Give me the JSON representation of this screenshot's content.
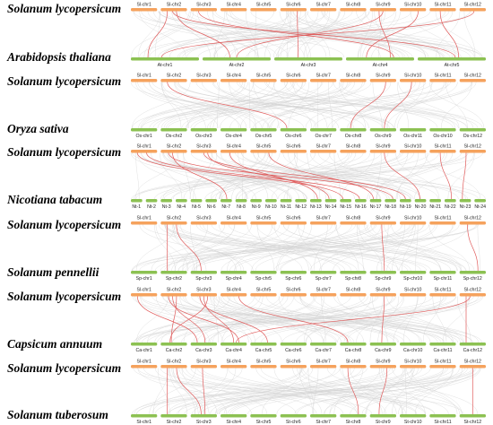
{
  "colors": {
    "top_chromosome": "#f5a25d",
    "bottom_chromosome": "#8cc152",
    "background_links": "#cfcfcf",
    "highlight_links": "#e05a5a"
  },
  "panels": [
    {
      "top_species": "Solanum lycopersicum",
      "bottom_species": "Arabidopsis thaliana",
      "top_chromosomes": [
        "Sl-chr1",
        "Sl-chr2",
        "Sl-chr3",
        "Sl-chr4",
        "Sl-chr5",
        "Sl-chr6",
        "Sl-chr7",
        "Sl-chr8",
        "Sl-chr9",
        "Sl-chr10",
        "Sl-chr11",
        "Sl-chr12"
      ],
      "bottom_chromosomes": [
        "At-chr1",
        "At-chr2",
        "At-chr3",
        "At-chr4",
        "At-chr5"
      ],
      "highlight_links": [
        [
          1,
          0
        ],
        [
          1,
          1
        ],
        [
          1,
          4
        ],
        [
          2,
          3
        ],
        [
          5,
          2
        ],
        [
          8,
          1
        ],
        [
          8,
          3
        ],
        [
          9,
          3
        ],
        [
          11,
          0
        ],
        [
          10,
          4
        ]
      ]
    },
    {
      "top_species": "Solanum lycopersicum",
      "bottom_species": "Oryza sativa",
      "top_chromosomes": [
        "Sl-chr1",
        "Sl-chr2",
        "Sl-chr3",
        "Sl-chr4",
        "Sl-chr5",
        "Sl-chr6",
        "Sl-chr7",
        "Sl-chr8",
        "Sl-chr9",
        "Sl-chr10",
        "Sl-chr11",
        "Sl-chr12"
      ],
      "bottom_chromosomes": [
        "Os-chr1",
        "Os-chr2",
        "Os-chr3",
        "Os-chr4",
        "Os-chr5",
        "Os-chr6",
        "Os-chr7",
        "Os-chr8",
        "Os-chr9",
        "Os-chr11",
        "Os-chr10",
        "Os-chr12"
      ],
      "highlight_links": [
        [
          1,
          5
        ],
        [
          8,
          7
        ],
        [
          9,
          8
        ]
      ]
    },
    {
      "top_species": "Solanum lycopersicum",
      "bottom_species": "Nicotiana tabacum",
      "top_chromosomes": [
        "Sl-chr1",
        "Sl-chr2",
        "Sl-chr3",
        "Sl-chr4",
        "Sl-chr5",
        "Sl-chr6",
        "Sl-chr7",
        "Sl-chr8",
        "Sl-chr9",
        "Sl-chr10",
        "Sl-chr11",
        "Sl-chr12"
      ],
      "bottom_chromosomes": [
        "Nt-1",
        "Nt-2",
        "Nt-3",
        "Nt-4",
        "Nt-5",
        "Nt-6",
        "Nt-7",
        "Nt-8",
        "Nt-9",
        "Nt-10",
        "Nt-11",
        "Nt-12",
        "Nt-13",
        "Nt-14",
        "Nt-15",
        "Nt-16",
        "Nt-17",
        "Nt-18",
        "Nt-19",
        "Nt-20",
        "Nt-21",
        "Nt-22",
        "Nt-23",
        "Nt-24"
      ],
      "highlight_links": [
        [
          0,
          14
        ],
        [
          0,
          15
        ],
        [
          1,
          6
        ],
        [
          1,
          17
        ],
        [
          2,
          13
        ],
        [
          2,
          18
        ],
        [
          3,
          12
        ],
        [
          4,
          16
        ],
        [
          8,
          19
        ],
        [
          10,
          21
        ],
        [
          11,
          22
        ]
      ]
    },
    {
      "top_species": "Solanum lycopersicum",
      "bottom_species": "Solanum pennellii",
      "top_chromosomes": [
        "Sl-chr1",
        "Sl-chr2",
        "Sl-chr3",
        "Sl-chr4",
        "Sl-chr5",
        "Sl-chr6",
        "Sl-chr7",
        "Sl-chr8",
        "Sl-chr9",
        "Sl-chr10",
        "Sl-chr11",
        "Sl-chr12"
      ],
      "bottom_chromosomes": [
        "Sp-chr1",
        "Sp-chr2",
        "Sp-chr3",
        "Sp-chr4",
        "Sp-chr5",
        "Sp-chr6",
        "Sp-chr7",
        "Sp-chr8",
        "Sp-chr9",
        "Sp-chr10",
        "Sp-chr11",
        "Sp-chr12"
      ],
      "highlight_links": [
        [
          1,
          1
        ],
        [
          1,
          2
        ],
        [
          8,
          8
        ],
        [
          11,
          11
        ]
      ]
    },
    {
      "top_species": "Solanum lycopersicum",
      "bottom_species": "Capsicum annuum",
      "top_chromosomes": [
        "Sl-chr1",
        "Sl-chr2",
        "Sl-chr3",
        "Sl-chr4",
        "Sl-chr5",
        "Sl-chr6",
        "Sl-chr7",
        "Sl-chr8",
        "Sl-chr9",
        "Sl-chr10",
        "Sl-chr11",
        "Sl-chr12"
      ],
      "bottom_chromosomes": [
        "Ca-chr1",
        "Ca-chr2",
        "Ca-chr3",
        "Ca-chr4",
        "Ca-chr5",
        "Ca-chr6",
        "Ca-chr7",
        "Ca-chr8",
        "Ca-chr9",
        "Ca-chr10",
        "Ca-chr11",
        "Ca-chr12"
      ],
      "highlight_links": [
        [
          0,
          2
        ],
        [
          1,
          1
        ],
        [
          1,
          2
        ],
        [
          1,
          3
        ],
        [
          2,
          1
        ],
        [
          2,
          3
        ],
        [
          2,
          4
        ],
        [
          3,
          7
        ],
        [
          8,
          8
        ],
        [
          11,
          3
        ],
        [
          11,
          11
        ]
      ]
    },
    {
      "top_species": "Solanum lycopersicum",
      "bottom_species": "Solanum tuberosum",
      "top_chromosomes": [
        "Sl-chr1",
        "Sl-chr2",
        "Sl-chr3",
        "Sl-chr4",
        "Sl-chr5",
        "Sl-chr6",
        "Sl-chr7",
        "Sl-chr8",
        "Sl-chr9",
        "Sl-chr10",
        "Sl-chr11",
        "Sl-chr12"
      ],
      "bottom_chromosomes": [
        "St-chr1",
        "St-chr2",
        "St-chr3",
        "St-chr4",
        "St-chr5",
        "St-chr6",
        "St-chr7",
        "St-chr8",
        "St-chr9",
        "St-chr10",
        "St-chr11",
        "St-chr12"
      ],
      "highlight_links": [
        [
          1,
          1
        ],
        [
          1,
          2
        ],
        [
          2,
          2
        ],
        [
          7,
          7
        ],
        [
          8,
          8
        ],
        [
          11,
          11
        ]
      ]
    }
  ]
}
